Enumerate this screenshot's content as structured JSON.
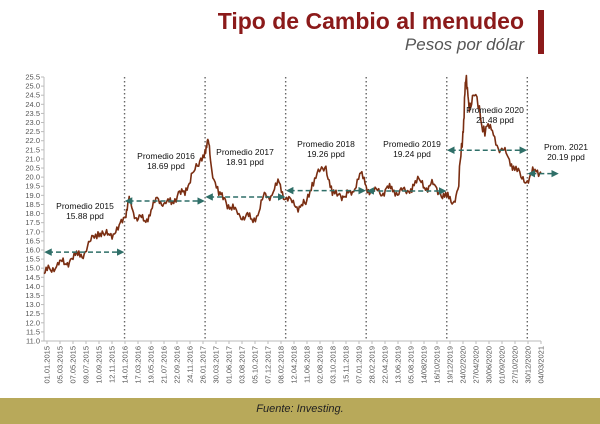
{
  "header": {
    "title": "Tipo de Cambio al menudeo",
    "subtitle": "Pesos por dólar"
  },
  "footer": {
    "source": "Fuente: Investing."
  },
  "colors": {
    "line": "#7a2e12",
    "title": "#8b1a1a",
    "arrow": "#2f6f68",
    "footer": "#b8a95a"
  },
  "chart_data": {
    "type": "line",
    "title": "Tipo de Cambio al menudeo",
    "ylabel": "Pesos por dólar",
    "ylim": [
      11.0,
      25.5
    ],
    "yticks": [
      "11.0",
      "11.5",
      "12.0",
      "12.5",
      "13.0",
      "13.5",
      "14.0",
      "14.5",
      "15.0",
      "15.5",
      "16.0",
      "16.5",
      "17.0",
      "17.5",
      "18.0",
      "18.5",
      "19.0",
      "19.5",
      "20.0",
      "20.5",
      "21.0",
      "21.5",
      "22.0",
      "22.5",
      "23.0",
      "23.5",
      "24.0",
      "24.5",
      "25.0",
      "25.5"
    ],
    "xticks": [
      "01.01.2015",
      "05.03.2015",
      "07.05.2015",
      "09.07.2015",
      "10.09.2015",
      "12.11.2015",
      "14.01.2016",
      "17.03.2016",
      "19.05.2016",
      "21.07.2016",
      "22.09.2016",
      "24.11.2016",
      "26.01.2017",
      "30.03.2017",
      "01.06.2017",
      "03.08.2017",
      "05.10.2017",
      "07.12.2017",
      "08.02.2018",
      "12.04.2018",
      "11.06.2018",
      "02.08.2018",
      "03.10.2018",
      "15.11.2018",
      "07.01.2019",
      "28.02.2019",
      "22.04.2019",
      "13.06.2019",
      "05.08.2019",
      "14/08/2019",
      "16/10/2019",
      "19/12/2019",
      "24/02/2020",
      "27/04/2020",
      "30/06/2020",
      "01/09/2020",
      "27/10/2020",
      "30/12/2020",
      "04/03/2021"
    ],
    "series": [
      {
        "x": [
          2015.0,
          2015.08,
          2015.17,
          2015.25,
          2015.33,
          2015.42,
          2015.5,
          2015.58,
          2015.67,
          2015.75,
          2015.83,
          2015.92,
          2016.0,
          2016.05,
          2016.1,
          2016.17,
          2016.25,
          2016.33,
          2016.42,
          2016.5,
          2016.58,
          2016.67,
          2016.75,
          2016.83,
          2016.92,
          2017.0,
          2017.04,
          2017.08,
          2017.17,
          2017.25,
          2017.33,
          2017.42,
          2017.5,
          2017.58,
          2017.67,
          2017.75,
          2017.83,
          2017.92,
          2018.0,
          2018.08,
          2018.17,
          2018.25,
          2018.33,
          2018.42,
          2018.5,
          2018.58,
          2018.67,
          2018.75,
          2018.83,
          2018.92,
          2019.0,
          2019.08,
          2019.17,
          2019.25,
          2019.33,
          2019.42,
          2019.5,
          2019.58,
          2019.67,
          2019.75,
          2019.83,
          2019.92,
          2020.0,
          2020.08,
          2020.15,
          2020.2,
          2020.23,
          2020.27,
          2020.33,
          2020.42,
          2020.5,
          2020.58,
          2020.67,
          2020.75,
          2020.83,
          2020.92,
          2021.0,
          2021.08,
          2021.17
        ],
        "y": [
          14.7,
          14.9,
          15.3,
          15.2,
          15.5,
          15.7,
          15.8,
          16.5,
          17.0,
          16.8,
          16.9,
          17.1,
          17.8,
          18.7,
          18.2,
          17.7,
          17.6,
          18.2,
          18.8,
          18.6,
          18.5,
          19.2,
          19.0,
          20.2,
          20.6,
          21.5,
          22.0,
          20.5,
          19.0,
          18.8,
          18.2,
          18.0,
          17.8,
          17.7,
          18.1,
          19.1,
          19.0,
          19.7,
          18.8,
          18.6,
          18.4,
          18.5,
          19.7,
          20.3,
          20.6,
          19.0,
          19.1,
          18.9,
          19.2,
          20.2,
          19.5,
          19.2,
          19.1,
          19.4,
          19.2,
          19.3,
          19.1,
          19.6,
          19.8,
          19.4,
          19.6,
          19.1,
          18.9,
          18.6,
          19.5,
          22.5,
          25.2,
          24.2,
          24.5,
          23.2,
          22.8,
          22.3,
          21.5,
          21.2,
          20.6,
          20.0,
          19.8,
          20.3,
          20.3
        ]
      }
    ],
    "annotations": [
      {
        "label": "Promedio 2015",
        "value": "15.88 ppd"
      },
      {
        "label": "Promedio 2016",
        "value": "18.69 ppd"
      },
      {
        "label": "Promedio 2017",
        "value": "18.91 ppd"
      },
      {
        "label": "Promedio 2018",
        "value": "19.26 ppd"
      },
      {
        "label": "Promedio 2019",
        "value": "19.24 ppd"
      },
      {
        "label": "Promedio 2020",
        "value": "21.48 ppd"
      },
      {
        "label": "Prom. 2021",
        "value": "20.19 ppd"
      }
    ],
    "averages": [
      {
        "x0": 2015.0,
        "x1": 2016.0,
        "y": 15.88
      },
      {
        "x0": 2016.0,
        "x1": 2017.0,
        "y": 18.69
      },
      {
        "x0": 2017.0,
        "x1": 2018.0,
        "y": 18.91
      },
      {
        "x0": 2018.0,
        "x1": 2019.0,
        "y": 19.26
      },
      {
        "x0": 2019.0,
        "x1": 2020.0,
        "y": 19.24
      },
      {
        "x0": 2020.0,
        "x1": 2021.0,
        "y": 21.48
      },
      {
        "x0": 2021.0,
        "x1": 2021.17,
        "y": 20.19
      }
    ],
    "year_dividers": [
      2016.0,
      2017.0,
      2018.0,
      2019.0,
      2020.0,
      2021.0
    ],
    "xlim": [
      2015.0,
      2021.17
    ],
    "grid": false,
    "legend": "none"
  }
}
